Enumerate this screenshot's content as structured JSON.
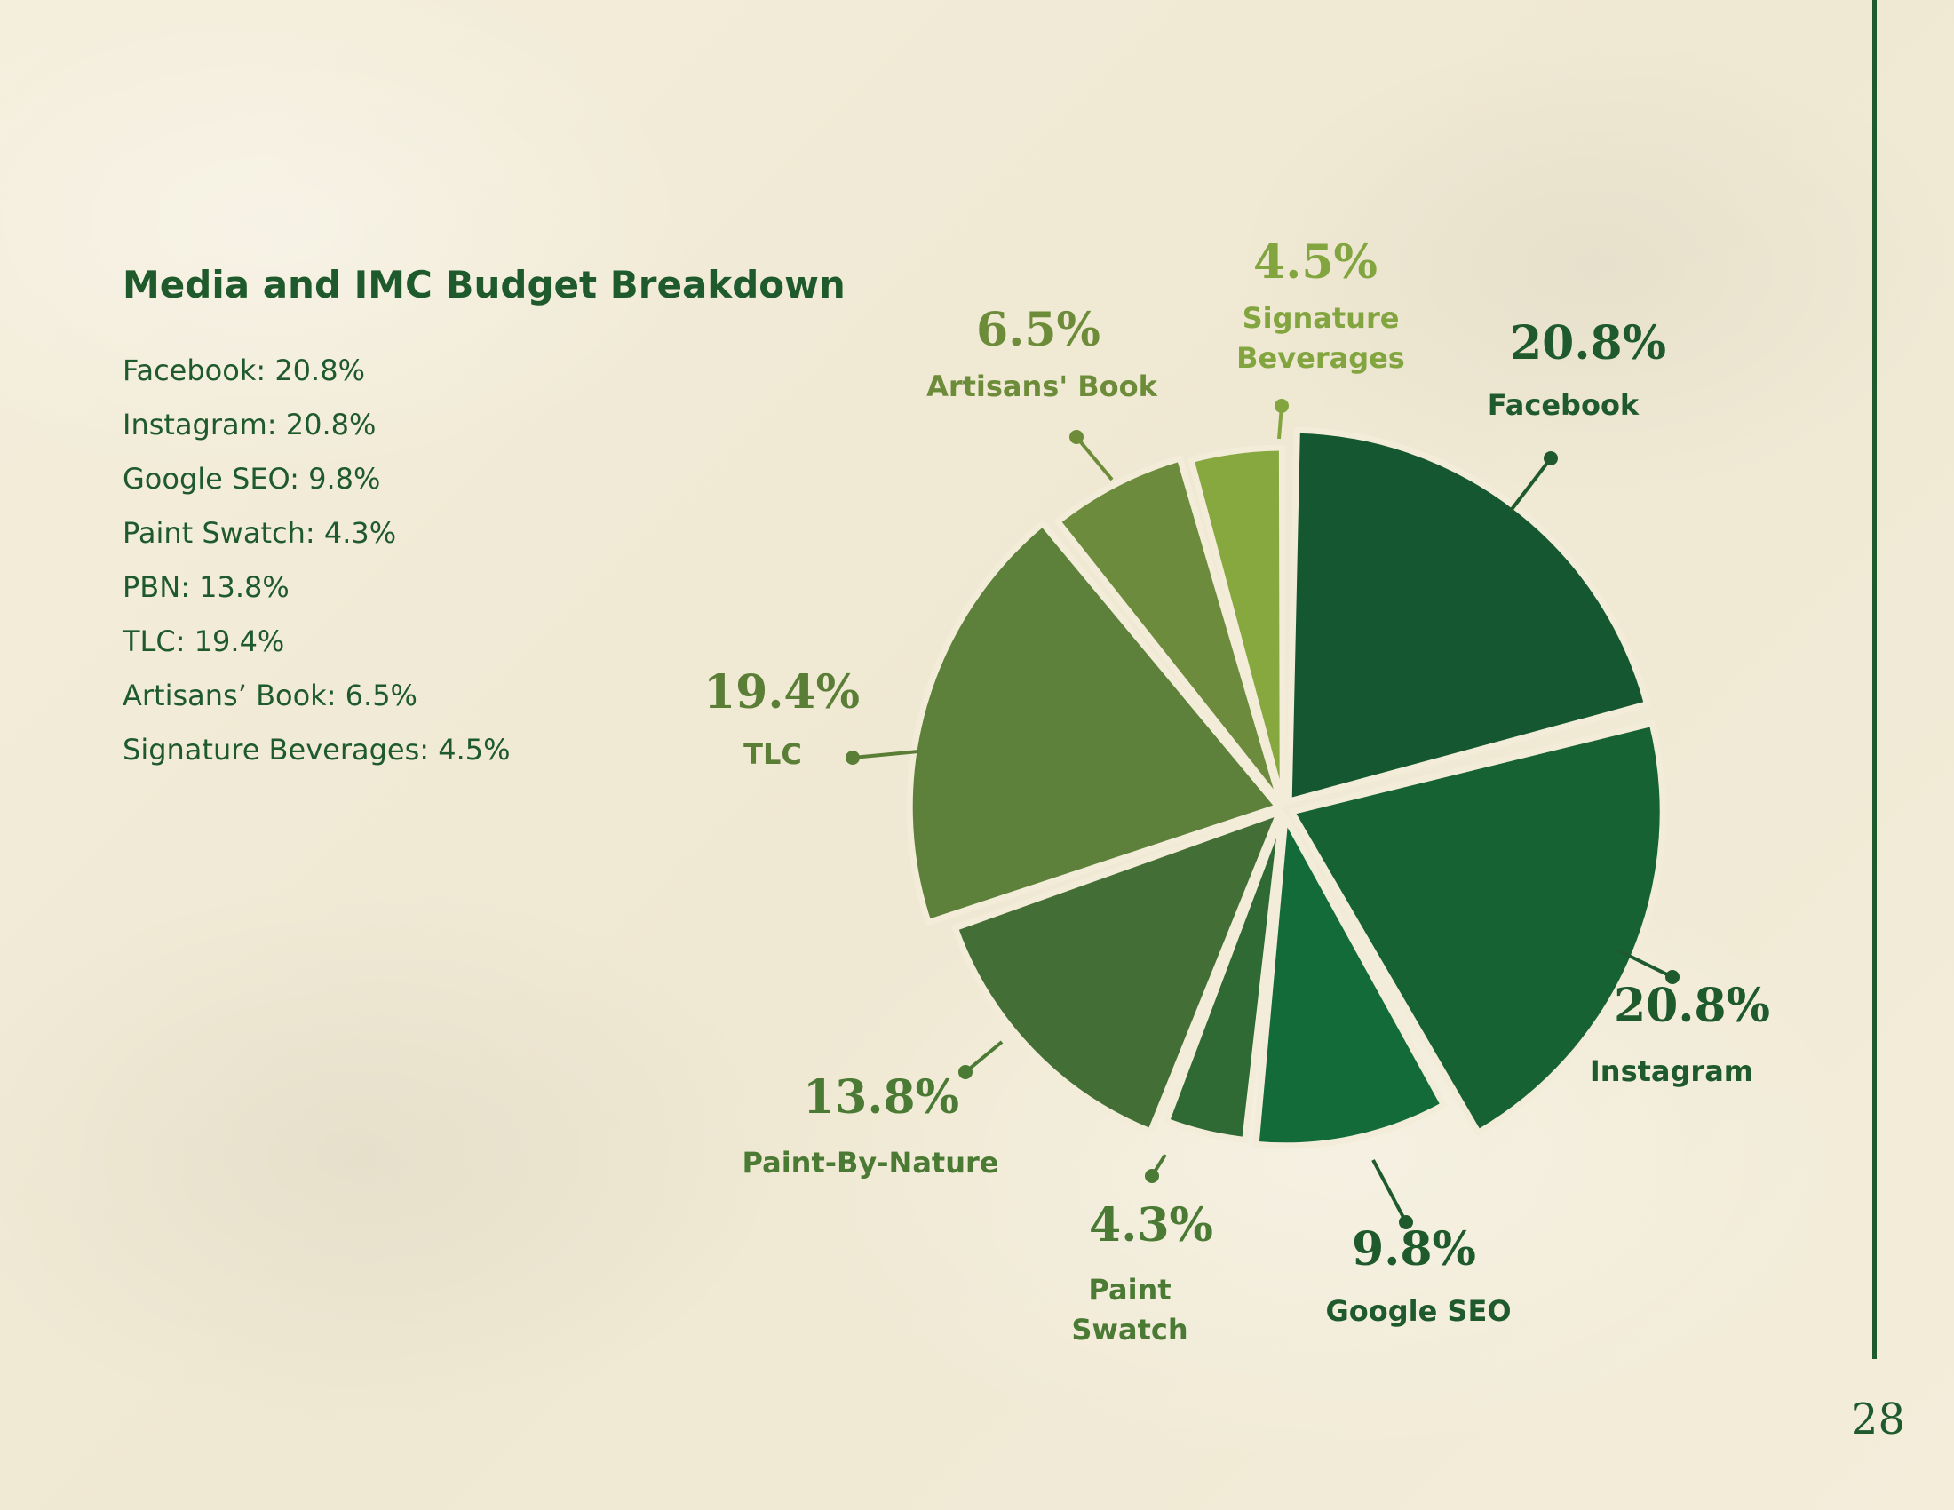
{
  "title": "Media and IMC Budget Breakdown",
  "legend_items": [
    "Facebook: 20.8%",
    "Instagram: 20.8%",
    "Google SEO: 9.8%",
    "Paint Swatch: 4.3%",
    "PBN: 13.8%",
    "TLC: 19.4%",
    "Artisans’ Book: 6.5%",
    "Signature Beverages: 4.5%"
  ],
  "page_number": "28",
  "colors": {
    "text": "#1e5a2c",
    "background": "#f2ecd9"
  },
  "chart_data": {
    "type": "pie",
    "title": "Media and IMC Budget Breakdown",
    "slices": [
      {
        "label": "Facebook",
        "value": 20.8,
        "value_label": "20.8%",
        "color": "#155730",
        "label_color": "#1e5a2c"
      },
      {
        "label": "Instagram",
        "value": 20.8,
        "value_label": "20.8%",
        "color": "#166233",
        "label_color": "#1e5a2c"
      },
      {
        "label": "Google SEO",
        "value": 9.8,
        "value_label": "9.8%",
        "color": "#126b38",
        "label_color": "#1e5a2c"
      },
      {
        "label": "Paint Swatch",
        "value": 4.3,
        "value_label": "4.3%",
        "color": "#2f6a34",
        "label_color": "#4a7a34"
      },
      {
        "label": "Paint-By-Nature",
        "value": 13.8,
        "value_label": "13.8%",
        "color": "#436e35",
        "label_color": "#4a7a34"
      },
      {
        "label": "TLC",
        "value": 19.4,
        "value_label": "19.4%",
        "color": "#5d803a",
        "label_color": "#5a7e36"
      },
      {
        "label": "Artisans' Book",
        "value": 6.5,
        "value_label": "6.5%",
        "color": "#6c8b3d",
        "label_color": "#6d8c3a"
      },
      {
        "label": "Signature Beverages",
        "value": 4.5,
        "value_label": "4.5%",
        "color": "#86a83e",
        "label_color": "#82a53f"
      }
    ]
  }
}
